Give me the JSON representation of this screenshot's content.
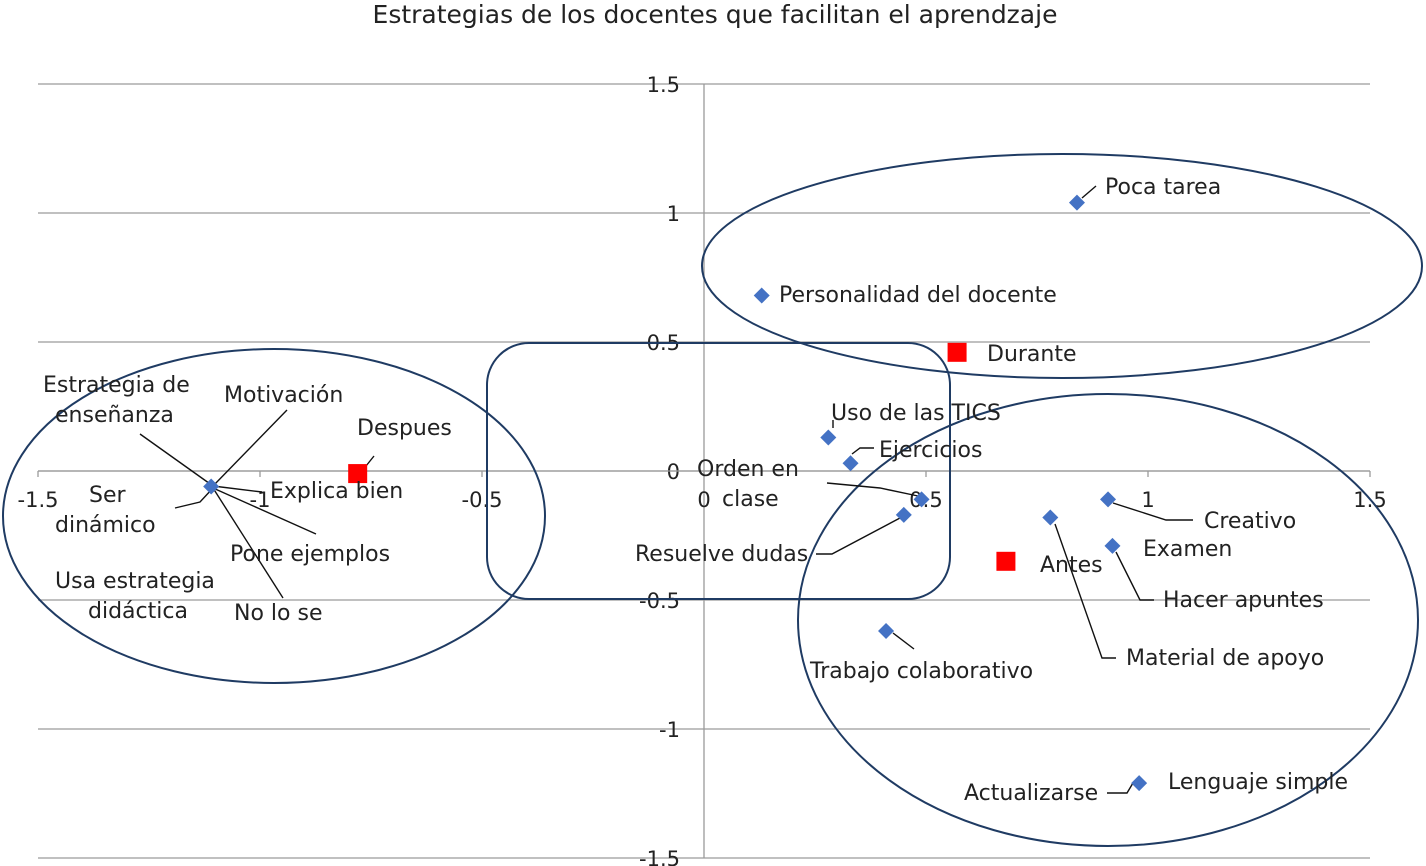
{
  "chart_data": {
    "type": "scatter",
    "title": "Estrategias de los docentes que facilitan el aprendzaje",
    "xlim": [
      -1.5,
      1.5
    ],
    "ylim": [
      -1.5,
      1.5
    ],
    "x_ticks": [
      "-1.5",
      "-1",
      "-0.5",
      "0",
      "0.5",
      "1",
      "1.5"
    ],
    "y_ticks": [
      "1.5",
      "1",
      "0.5",
      "0",
      "-0.5",
      "-1",
      "-1.5"
    ],
    "grid": "horizontal",
    "series": [
      {
        "marker": "diamond",
        "color": "#4472C4",
        "points": [
          {
            "label": "Poca tarea",
            "x": 0.84,
            "y": 1.04
          },
          {
            "label": "Personalidad del docente",
            "x": 0.13,
            "y": 0.68
          },
          {
            "label": "Uso de las TICS",
            "x": 0.28,
            "y": 0.13
          },
          {
            "label": "Ejercicios",
            "x": 0.33,
            "y": 0.03
          },
          {
            "label": "Orden en clase",
            "x": 0.49,
            "y": -0.11
          },
          {
            "label": "Resuelve dudas",
            "x": 0.45,
            "y": -0.17
          },
          {
            "label": "Trabajo colaborativo",
            "x": 0.41,
            "y": -0.62
          },
          {
            "label": "Creativo",
            "x": 0.91,
            "y": -0.11
          },
          {
            "label": "Material de apoyo",
            "x": 0.78,
            "y": -0.18
          },
          {
            "label": "Examen",
            "x": 0.92,
            "y": -0.29
          },
          {
            "label": "Hacer apuntes",
            "x": 0.92,
            "y": -0.29
          },
          {
            "label": "Lenguaje simple",
            "x": 0.98,
            "y": -1.21
          },
          {
            "label": "Actualizarse",
            "x": 0.98,
            "y": -1.21
          },
          {
            "label": "Estrategia de enseñanza",
            "x": -1.11,
            "y": -0.06
          },
          {
            "label": "Motivación",
            "x": -1.11,
            "y": -0.06
          },
          {
            "label": "Ser dinámico",
            "x": -1.11,
            "y": -0.06
          },
          {
            "label": "Explica bien",
            "x": -1.11,
            "y": -0.06
          },
          {
            "label": "Pone ejemplos",
            "x": -1.11,
            "y": -0.06
          },
          {
            "label": "Usa estrategia didáctica",
            "x": -1.11,
            "y": -0.06
          },
          {
            "label": "No lo se",
            "x": -1.11,
            "y": -0.06
          }
        ]
      },
      {
        "marker": "square",
        "color": "#FF0000",
        "points": [
          {
            "label": "Durante",
            "x": 0.57,
            "y": 0.46
          },
          {
            "label": "Despues",
            "x": -0.78,
            "y": -0.01
          },
          {
            "label": "Antes",
            "x": 0.68,
            "y": -0.35
          }
        ]
      }
    ]
  }
}
